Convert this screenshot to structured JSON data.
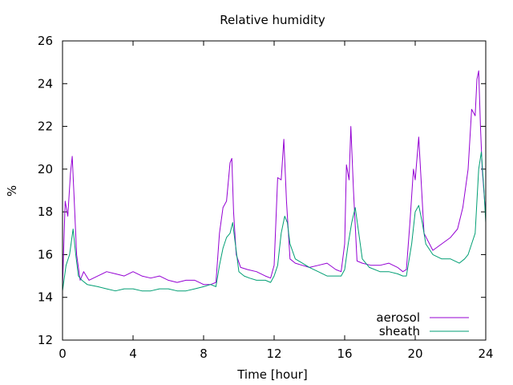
{
  "chart_data": {
    "type": "line",
    "title": "Relative humidity",
    "xlabel": "Time [hour]",
    "ylabel": "%",
    "xlim": [
      0,
      24
    ],
    "ylim": [
      12,
      26
    ],
    "xticks": [
      0,
      4,
      8,
      12,
      16,
      20,
      24
    ],
    "yticks": [
      12,
      14,
      16,
      18,
      20,
      22,
      24,
      26
    ],
    "grid": false,
    "legend_position": "bottom-right",
    "series": [
      {
        "name": "aerosol",
        "color": "#9400d3",
        "x": [
          0,
          0.15,
          0.3,
          0.45,
          0.55,
          0.65,
          0.8,
          1.0,
          1.2,
          1.5,
          2,
          2.5,
          3,
          3.5,
          4,
          4.5,
          5,
          5.5,
          6,
          6.5,
          7,
          7.5,
          8,
          8.4,
          8.7,
          8.9,
          9.1,
          9.3,
          9.5,
          9.6,
          9.7,
          9.85,
          10.1,
          10.5,
          11,
          11.5,
          11.8,
          12.0,
          12.2,
          12.4,
          12.55,
          12.7,
          12.9,
          13.2,
          13.6,
          14,
          14.5,
          15,
          15.5,
          15.8,
          16.0,
          16.1,
          16.25,
          16.35,
          16.5,
          16.7,
          17.0,
          17.5,
          18,
          18.5,
          19,
          19.3,
          19.5,
          19.7,
          19.9,
          20.0,
          20.2,
          20.5,
          21,
          21.5,
          22,
          22.4,
          22.7,
          23.0,
          23.2,
          23.4,
          23.5,
          23.6,
          23.7,
          23.8,
          24.0
        ],
        "values": [
          14.5,
          18.5,
          17.8,
          19.8,
          20.6,
          18.8,
          16.0,
          14.8,
          15.2,
          14.8,
          15.0,
          15.2,
          15.1,
          15.0,
          15.2,
          15.0,
          14.9,
          15.0,
          14.8,
          14.7,
          14.8,
          14.8,
          14.6,
          14.6,
          14.7,
          17.0,
          18.2,
          18.5,
          20.3,
          20.5,
          18.0,
          16.0,
          15.4,
          15.3,
          15.2,
          15.0,
          14.9,
          15.5,
          19.6,
          19.5,
          21.4,
          18.5,
          15.8,
          15.6,
          15.5,
          15.4,
          15.5,
          15.6,
          15.3,
          15.2,
          16.5,
          20.2,
          19.5,
          22.0,
          19.0,
          15.7,
          15.6,
          15.5,
          15.5,
          15.6,
          15.4,
          15.2,
          15.3,
          17.5,
          20.0,
          19.5,
          21.5,
          17.0,
          16.2,
          16.5,
          16.8,
          17.2,
          18.2,
          20.0,
          22.8,
          22.5,
          24.2,
          24.6,
          22.0,
          20.0,
          17.8
        ]
      },
      {
        "name": "sheath",
        "color": "#009e73",
        "x": [
          0,
          0.2,
          0.4,
          0.6,
          0.75,
          0.9,
          1.1,
          1.4,
          2,
          2.5,
          3,
          3.5,
          4,
          4.5,
          5,
          5.5,
          6,
          6.5,
          7,
          7.5,
          8,
          8.4,
          8.7,
          8.9,
          9.1,
          9.3,
          9.5,
          9.65,
          9.8,
          10.0,
          10.3,
          10.6,
          11,
          11.5,
          11.8,
          12.0,
          12.2,
          12.4,
          12.6,
          12.75,
          12.9,
          13.2,
          13.6,
          14,
          14.5,
          15,
          15.5,
          15.8,
          16.0,
          16.2,
          16.4,
          16.6,
          16.8,
          17.0,
          17.4,
          18,
          18.5,
          19,
          19.3,
          19.5,
          19.8,
          20.0,
          20.2,
          20.4,
          20.6,
          21,
          21.5,
          22,
          22.5,
          22.8,
          23.0,
          23.2,
          23.4,
          23.5,
          23.6,
          23.75,
          23.9,
          24.0
        ],
        "values": [
          14.3,
          15.5,
          16.0,
          17.2,
          16.0,
          15.0,
          14.8,
          14.6,
          14.5,
          14.4,
          14.3,
          14.4,
          14.4,
          14.3,
          14.3,
          14.4,
          14.4,
          14.3,
          14.3,
          14.4,
          14.5,
          14.6,
          14.5,
          15.5,
          16.3,
          16.8,
          17.0,
          17.5,
          16.5,
          15.2,
          15.0,
          14.9,
          14.8,
          14.8,
          14.7,
          15.0,
          15.5,
          17.0,
          17.8,
          17.5,
          16.5,
          15.8,
          15.6,
          15.4,
          15.2,
          15.0,
          15.0,
          15.0,
          15.3,
          16.5,
          17.5,
          18.2,
          17.0,
          15.8,
          15.4,
          15.2,
          15.2,
          15.1,
          15.0,
          15.0,
          16.5,
          18.0,
          18.3,
          17.5,
          16.5,
          16.0,
          15.8,
          15.8,
          15.6,
          15.8,
          16.0,
          16.5,
          17.0,
          18.5,
          20.0,
          20.8,
          19.0,
          17.5
        ]
      }
    ]
  }
}
